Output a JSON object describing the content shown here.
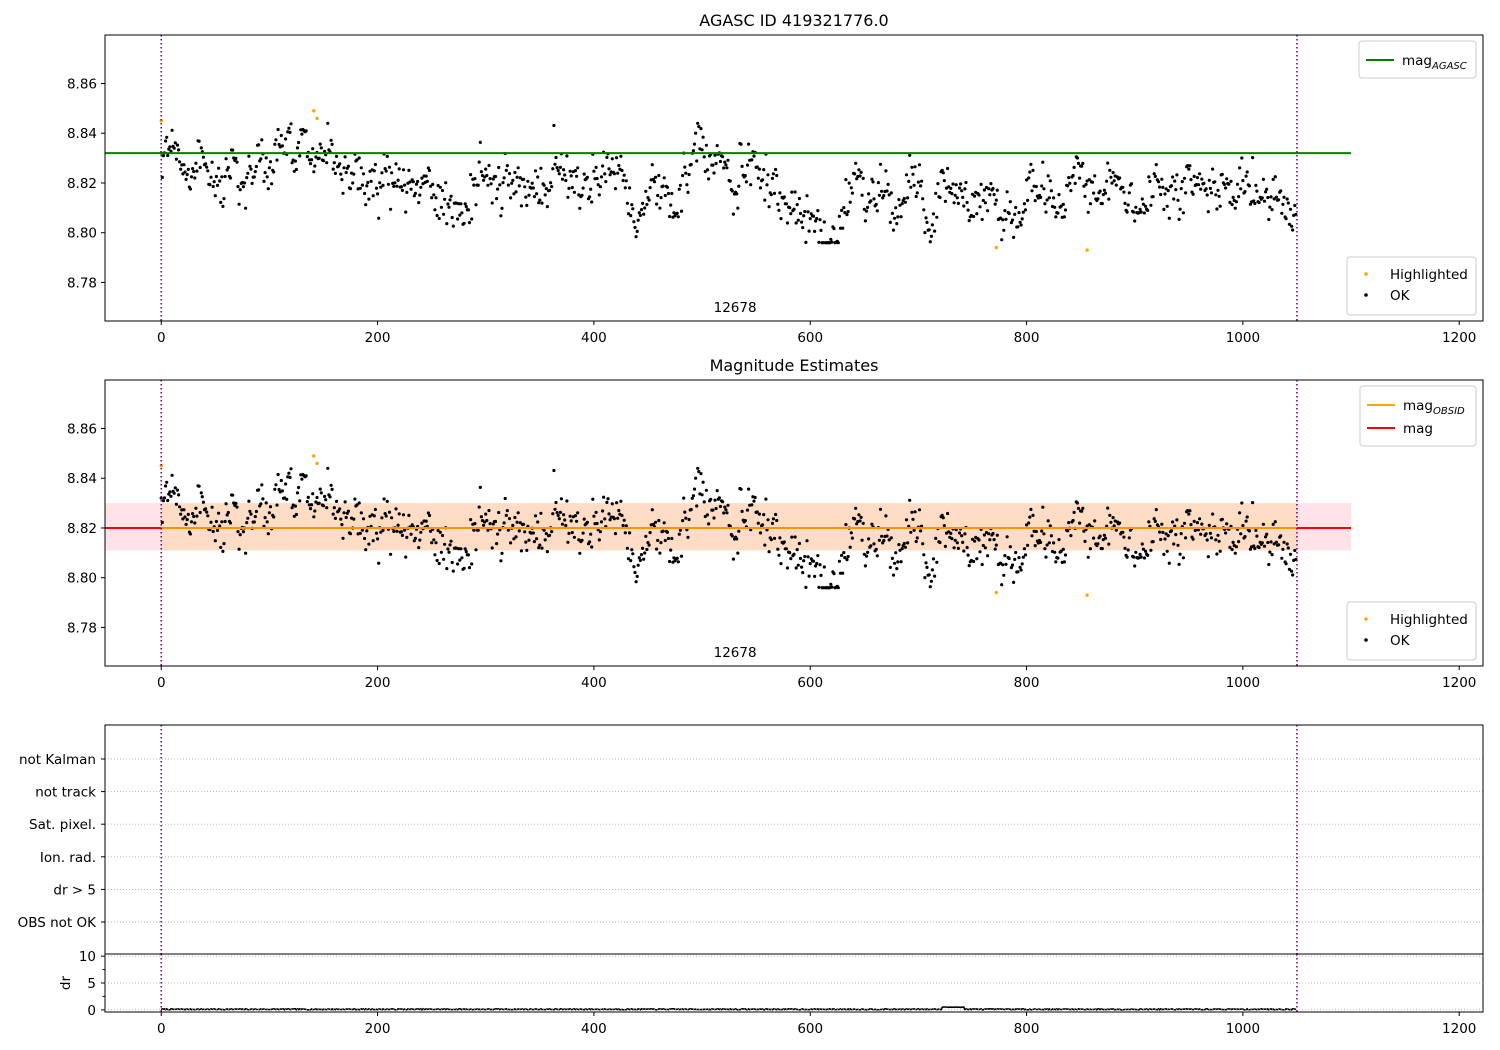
{
  "chart_data": [
    {
      "type": "scatter",
      "title": "AGASC ID 419321776.0",
      "xlabel": "",
      "ylabel": "",
      "xlim": [
        -52,
        1222
      ],
      "ylim": [
        8.7645,
        8.8795
      ],
      "xticks": [
        0,
        200,
        400,
        600,
        800,
        1000,
        1200
      ],
      "yticks": [
        8.78,
        8.8,
        8.82,
        8.84,
        8.86
      ],
      "grid": false,
      "legend_upper": {
        "position": "upper-right",
        "entries": [
          {
            "label": "mag",
            "subscript": "AGASC",
            "color": "#008000"
          }
        ]
      },
      "legend_lower": {
        "position": "lower-right",
        "entries": [
          {
            "label": "Highlighted",
            "color": "#ffa500"
          },
          {
            "label": "OK",
            "color": "#000000"
          }
        ]
      },
      "hline": {
        "name": "mag_AGASC",
        "y": 8.832,
        "x_range": [
          -52,
          1100
        ],
        "color": "#008000"
      },
      "vlines": [
        {
          "x": 0,
          "color": "#800080",
          "style": "dotted"
        },
        {
          "x": 1050,
          "color": "#800080",
          "style": "dotted"
        }
      ],
      "annotations": [
        {
          "text": "12678",
          "x": 525,
          "position": "bottom"
        }
      ],
      "series": [
        {
          "name": "OK",
          "color": "#000000",
          "generated": {
            "n": 1050,
            "x_start": 0,
            "x_step": 1,
            "baseline": 8.822,
            "segments": [
              [
                0,
                200,
                8.827
              ],
              [
                200,
                400,
                8.818
              ],
              [
                400,
                570,
                8.821
              ],
              [
                570,
                640,
                8.81
              ],
              [
                640,
                800,
                8.812
              ],
              [
                800,
                1050,
                8.819
              ]
            ],
            "noise": 0.0085,
            "seed": 12678
          }
        },
        {
          "name": "Highlighted",
          "color": "#ffa500",
          "x": [
            0,
            141,
            144,
            772,
            856
          ],
          "y": [
            8.845,
            8.849,
            8.846,
            8.794,
            8.793
          ]
        }
      ]
    },
    {
      "type": "scatter",
      "title": "Magnitude Estimates",
      "xlabel": "",
      "ylabel": "",
      "xlim": [
        -52,
        1222
      ],
      "ylim": [
        8.7645,
        8.8795
      ],
      "xticks": [
        0,
        200,
        400,
        600,
        800,
        1000,
        1200
      ],
      "yticks": [
        8.78,
        8.8,
        8.82,
        8.84,
        8.86
      ],
      "grid": false,
      "legend_upper": {
        "position": "upper-right",
        "entries": [
          {
            "label": "mag",
            "subscript": "OBSID",
            "color": "#ffa500"
          },
          {
            "label": "mag",
            "subscript": "",
            "color": "#ff0000"
          }
        ]
      },
      "legend_lower": {
        "position": "lower-right",
        "entries": [
          {
            "label": "Highlighted",
            "color": "#ffa500"
          },
          {
            "label": "OK",
            "color": "#000000"
          }
        ]
      },
      "hline": {
        "name": "mag",
        "y": 8.82,
        "x_range": [
          -52,
          1100
        ],
        "color": "#ff0000"
      },
      "band": {
        "y_low": 8.811,
        "y_high": 8.83,
        "x_range": [
          -52,
          1100
        ],
        "color": "#ffc0cb"
      },
      "band_obsid": {
        "y_low": 8.811,
        "y_high": 8.83,
        "x_range": [
          0,
          1050
        ],
        "color": "#ffdab9"
      },
      "vlines": [
        {
          "x": 0,
          "color": "#800080",
          "style": "dotted"
        },
        {
          "x": 1050,
          "color": "#800080",
          "style": "dotted"
        }
      ],
      "annotations": [
        {
          "text": "12678",
          "x": 525,
          "position": "bottom"
        }
      ]
    },
    {
      "type": "scatter",
      "title": "",
      "categories": [
        "not Kalman",
        "not track",
        "Sat. pixel.",
        "Ion. rad.",
        "dr > 5",
        "OBS not OK"
      ],
      "xlim": [
        -52,
        1222
      ],
      "grid": "horizontal-dotted",
      "vlines": [
        {
          "x": 0,
          "color": "#800080",
          "style": "dotted"
        },
        {
          "x": 1050,
          "color": "#800080",
          "style": "dotted"
        }
      ]
    },
    {
      "type": "line",
      "title": "",
      "ylabel": "dr",
      "xlim": [
        -52,
        1222
      ],
      "ylim": [
        -0.4,
        10.4
      ],
      "xticks": [
        0,
        200,
        400,
        600,
        800,
        1000,
        1200
      ],
      "yticks": [
        0,
        5,
        10
      ],
      "minor_yticks": [
        2.5,
        7.5
      ],
      "color": "#000000",
      "generated": {
        "n": 1050,
        "base": 0.1,
        "noise": 0.1,
        "bump": {
          "from": 722,
          "to": 742,
          "value": 0.5
        },
        "seed": 7
      },
      "vlines": [
        {
          "x": 0,
          "color": "#800080",
          "style": "dotted"
        },
        {
          "x": 1050,
          "color": "#800080",
          "style": "dotted"
        }
      ]
    }
  ]
}
